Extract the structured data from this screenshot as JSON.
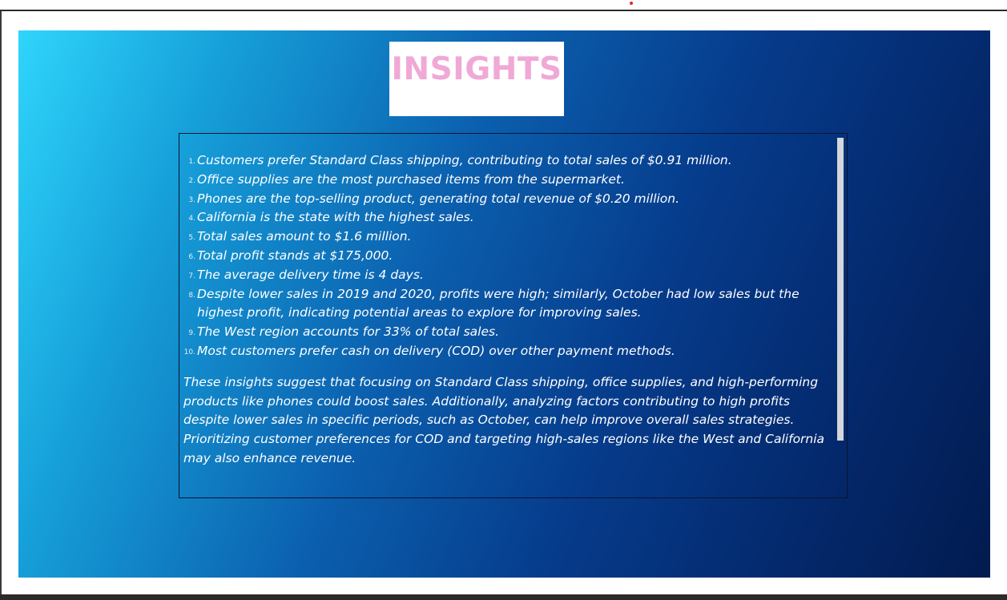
{
  "title": "INSIGHTS",
  "insights": [
    {
      "num": "1.",
      "text": "Customers prefer Standard Class shipping, contributing to total sales of $0.91 million."
    },
    {
      "num": "2.",
      "text": "Office supplies are the most purchased items from the supermarket."
    },
    {
      "num": "3.",
      "text": "Phones are the top-selling product, generating total revenue of $0.20 million."
    },
    {
      "num": "4.",
      "text": "California is the state with the highest sales."
    },
    {
      "num": "5.",
      "text": "Total sales amount to $1.6 million."
    },
    {
      "num": "6.",
      "text": "Total profit stands at $175,000."
    },
    {
      "num": "7.",
      "text": "The average delivery time is 4 days."
    },
    {
      "num": "8.",
      "text": "Despite lower sales in 2019 and 2020, profits were high; similarly, October had low sales but the highest profit, indicating potential areas to explore for improving sales."
    },
    {
      "num": "9.",
      "text": "The West region accounts for 33% of total sales."
    },
    {
      "num": "10.",
      "text": "Most customers prefer cash on delivery (COD) over other payment methods."
    }
  ],
  "summary": "These insights suggest that focusing on Standard Class shipping, office supplies, and high-performing products like phones could boost sales. Additionally, analyzing factors contributing to high profits despite lower sales in specific periods, such as October, can help improve overall sales strategies. Prioritizing customer preferences for COD and targeting high-sales regions like the West and California may also enhance revenue.",
  "colors": {
    "title_text": "#f0a9d6",
    "body_text": "#ffffff",
    "gradient_start": "#2fd5fb",
    "gradient_end": "#021b4f"
  }
}
